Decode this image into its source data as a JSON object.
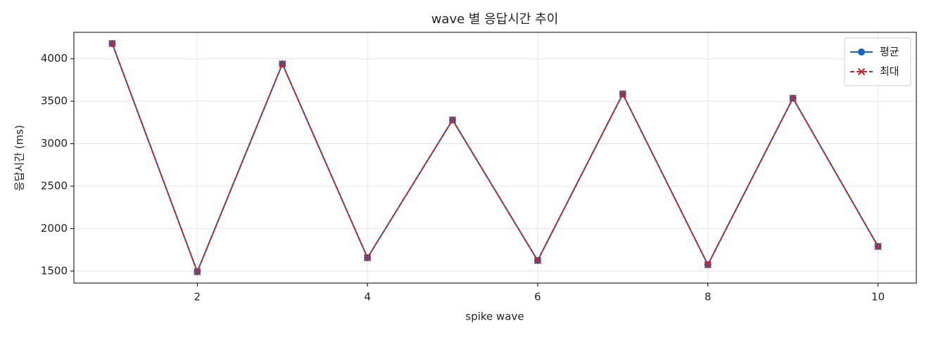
{
  "chart_data": {
    "type": "line",
    "title": "wave 별 응답시간 추이",
    "xlabel": "spike wave",
    "ylabel": "응답시간 (ms)",
    "x": [
      1,
      2,
      3,
      4,
      5,
      6,
      7,
      8,
      9,
      10
    ],
    "series": [
      {
        "name": "평균",
        "color": "#1565c0",
        "marker": "circle",
        "dash": false,
        "values": [
          4180,
          1492,
          3940,
          1657,
          3280,
          1624,
          3586,
          1575,
          3536,
          1790
        ]
      },
      {
        "name": "최대",
        "color": "#c62828",
        "marker": "x",
        "dash": true,
        "values": [
          4180,
          1492,
          3940,
          1657,
          3280,
          1624,
          3586,
          1575,
          3536,
          1790
        ]
      }
    ],
    "xlim": [
      0.55,
      10.45
    ],
    "xticks": [
      2,
      4,
      6,
      8,
      10
    ],
    "ylim": [
      1358,
      4312
    ],
    "yticks": [
      1500,
      2000,
      2500,
      3000,
      3500,
      4000
    ],
    "grid": true,
    "legend": "upper right"
  }
}
